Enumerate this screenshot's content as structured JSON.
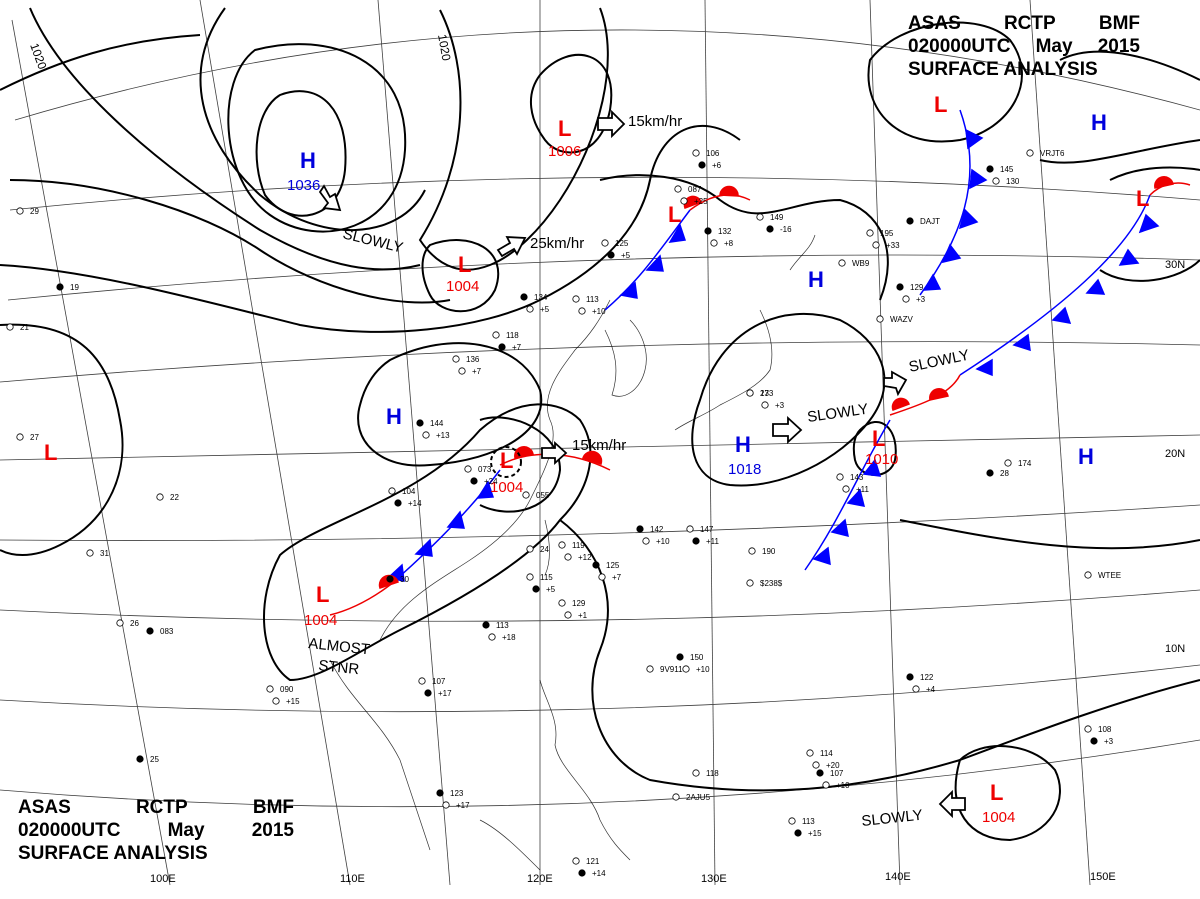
{
  "header_top_right": {
    "line1": [
      "ASAS",
      "RCTP",
      "BMF"
    ],
    "line2": [
      "020000UTC",
      "May",
      "2015"
    ],
    "line3": "SURFACE  ANALYSIS"
  },
  "header_bottom_left": {
    "line1": [
      "ASAS",
      "RCTP",
      "BMF"
    ],
    "line2": [
      "020000UTC",
      "May",
      "2015"
    ],
    "line3": "SURFACE  ANALYSIS"
  },
  "colors": {
    "high": "#0000dd",
    "low": "#ee0000",
    "cold_front": "#0000ff",
    "warm_front": "#ee0000",
    "isobar": "#000000"
  },
  "pressure_centers": [
    {
      "type": "H",
      "value": "1036"
    },
    {
      "type": "L",
      "value": "1006"
    },
    {
      "type": "L",
      "value": "1004"
    },
    {
      "type": "L",
      "value": "1004"
    },
    {
      "type": "L",
      "value": "1004"
    },
    {
      "type": "L",
      "value": "1010"
    },
    {
      "type": "L",
      "value": "1004"
    },
    {
      "type": "H",
      "value": "1018"
    },
    {
      "type": "H",
      "value": ""
    },
    {
      "type": "H",
      "value": ""
    },
    {
      "type": "H",
      "value": ""
    },
    {
      "type": "H",
      "value": ""
    },
    {
      "type": "L",
      "value": ""
    },
    {
      "type": "L",
      "value": ""
    },
    {
      "type": "L",
      "value": ""
    },
    {
      "type": "L",
      "value": ""
    }
  ],
  "motion_labels": [
    "15km/hr",
    "25km/hr",
    "15km/hr",
    "SLOWLY",
    "SLOWLY",
    "SLOWLY",
    "SLOWLY"
  ],
  "stationary_label": [
    "ALMOST",
    "STNR"
  ],
  "isobar_labels": [
    "1020",
    "1020"
  ],
  "longitude_labels": [
    "100E",
    "110E",
    "120E",
    "130E",
    "140E",
    "150E"
  ],
  "latitude_labels": [
    "30N",
    "20N",
    "10N"
  ],
  "station_samples": [
    "173",
    "+3",
    "149",
    "-16",
    "195",
    "+33",
    "129",
    "+3",
    "174",
    "145",
    "130",
    "106",
    "+6",
    "087",
    "+25",
    "132",
    "+8",
    "125",
    "+5",
    "113",
    "+10",
    "134",
    "+5",
    "118",
    "+7",
    "136",
    "+7",
    "144",
    "+13",
    "073",
    "+24",
    "055",
    "104",
    "+14",
    "119",
    "+12",
    "125",
    "+7",
    "115",
    "+5",
    "129",
    "+1",
    "113",
    "+18",
    "107",
    "+17",
    "090",
    "+15",
    "083",
    "143",
    "+11",
    "142",
    "+10",
    "147",
    "+11",
    "190",
    "$238$",
    "150",
    "+10",
    "9V911",
    "122",
    "+4",
    "108",
    "+3",
    "114",
    "+20",
    "107",
    "+10",
    "113",
    "+15",
    "118",
    "2AJU5",
    "123",
    "+17",
    "121",
    "+14",
    "WTEE",
    "VRJT6",
    "DAJT",
    "WAZV",
    "WB9",
    "28",
    "27",
    "26",
    "25",
    "24",
    "29",
    "30",
    "31",
    "22",
    "19",
    "21",
    "23"
  ]
}
